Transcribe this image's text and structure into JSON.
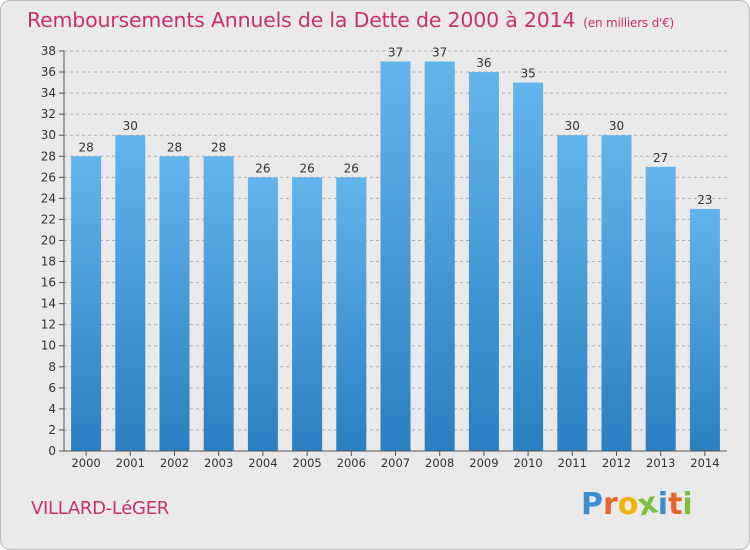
{
  "title": "Remboursements Annuels de la Dette de 2000 à 2014",
  "unit": "(en milliers d'€)",
  "town": "VILLARD-LéGER",
  "logo": {
    "text": "Proxiti",
    "letters": [
      "P",
      "r",
      "o",
      "x",
      "i",
      "t",
      "i"
    ],
    "colors": [
      "#3b8fd0",
      "#e8642c",
      "#f0b400",
      "#7cc040",
      "#3b8fd0",
      "#e8642c",
      "#7cc040"
    ]
  },
  "colors": {
    "bar_top": "#62b4ec",
    "bar_bottom": "#2a7fc0",
    "title": "#c8306e",
    "grid": "#b0b0b0"
  },
  "chart_data": {
    "type": "bar",
    "title": "Remboursements Annuels de la Dette de 2000 à 2014",
    "xlabel": "",
    "ylabel": "",
    "ylim": [
      0,
      38
    ],
    "yticks": [
      0,
      2,
      4,
      6,
      8,
      10,
      12,
      14,
      16,
      18,
      20,
      22,
      24,
      26,
      28,
      30,
      32,
      34,
      36,
      38
    ],
    "categories": [
      "2000",
      "2001",
      "2002",
      "2003",
      "2004",
      "2005",
      "2006",
      "2007",
      "2008",
      "2009",
      "2010",
      "2011",
      "2012",
      "2013",
      "2014"
    ],
    "values": [
      28,
      30,
      28,
      28,
      26,
      26,
      26,
      37,
      37,
      36,
      35,
      30,
      30,
      27,
      23
    ]
  }
}
